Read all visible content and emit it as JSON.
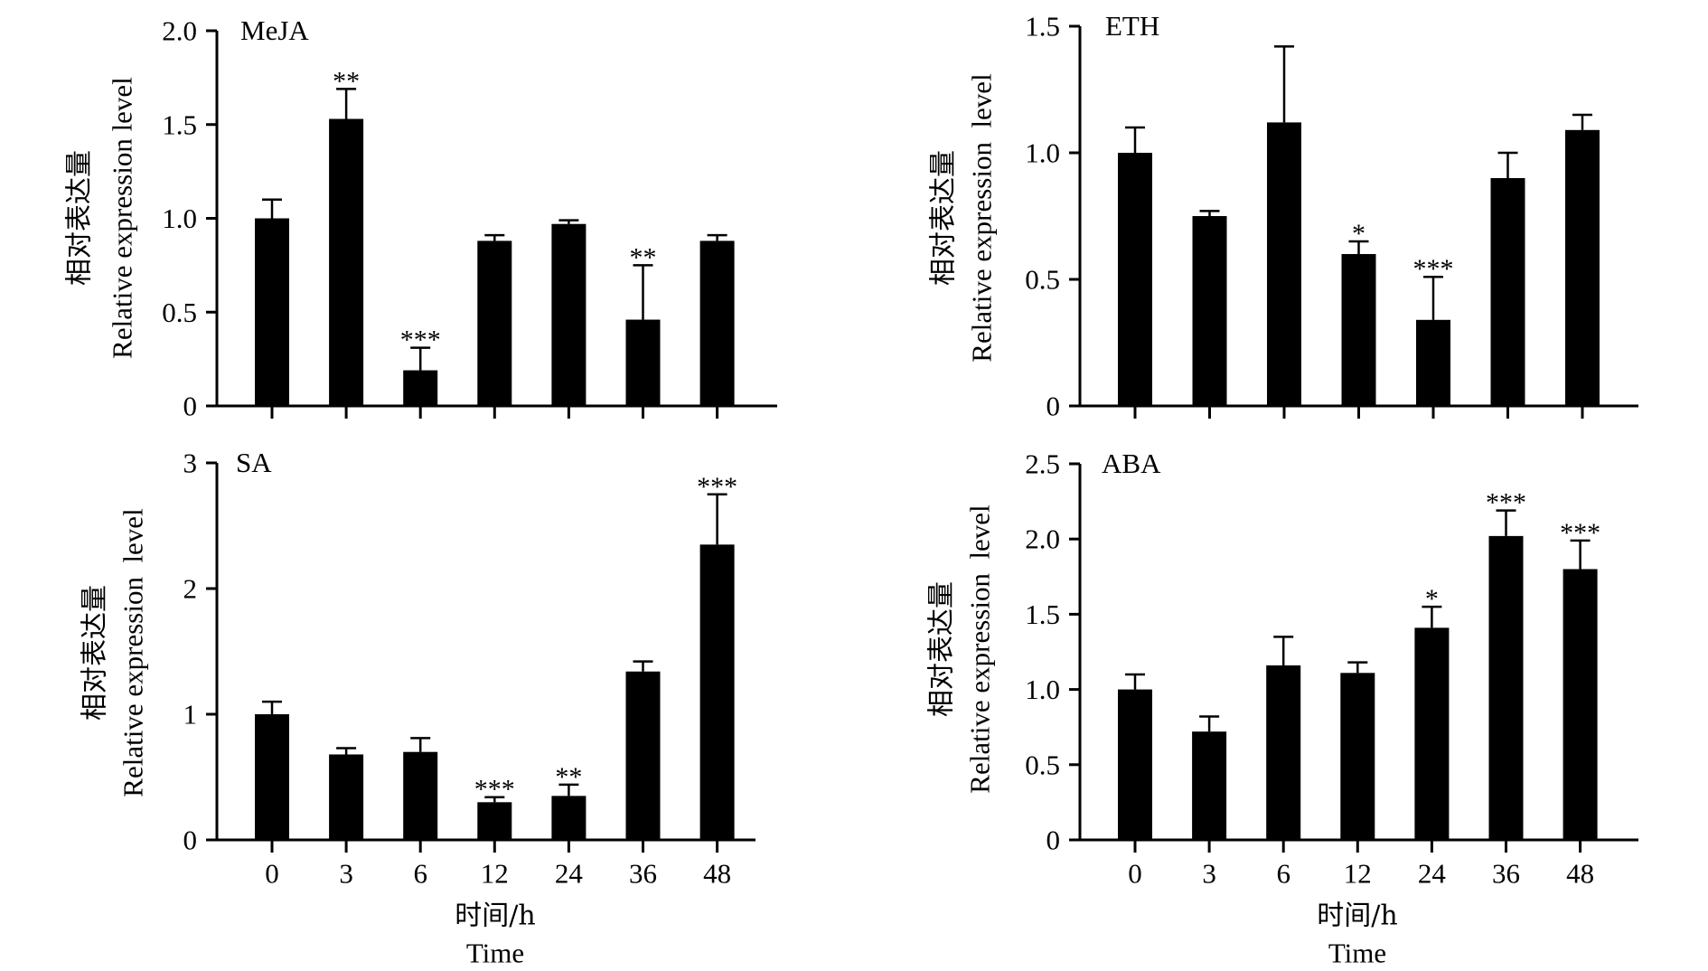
{
  "figure": {
    "background": "#ffffff"
  },
  "chart_data": [
    {
      "type": "bar",
      "title": "MeJA",
      "x": [
        0,
        3,
        6,
        12,
        24,
        36,
        48
      ],
      "x_tick_labels_shown": false,
      "values": [
        1.0,
        1.53,
        0.19,
        0.88,
        0.97,
        0.46,
        0.88
      ],
      "errors": [
        0.1,
        0.16,
        0.12,
        0.03,
        0.02,
        0.29,
        0.03
      ],
      "significance": [
        "",
        "**",
        "***",
        "",
        "",
        "**",
        ""
      ],
      "ylabel": {
        "cn": "相对表达量",
        "en": "Relative expression level"
      },
      "ylim": [
        0,
        2.0
      ],
      "yticks": [
        "0",
        "0.5",
        "1.0",
        "1.5",
        "2.0"
      ],
      "grid": false,
      "bar_color": "#000000",
      "axis_color": "#000000"
    },
    {
      "type": "bar",
      "title": "ETH",
      "x": [
        0,
        3,
        6,
        12,
        24,
        36,
        48
      ],
      "x_tick_labels_shown": false,
      "values": [
        1.0,
        0.75,
        1.12,
        0.6,
        0.34,
        0.9,
        1.09
      ],
      "errors": [
        0.1,
        0.02,
        0.3,
        0.05,
        0.17,
        0.1,
        0.06
      ],
      "significance": [
        "",
        "",
        "",
        "*",
        "***",
        "",
        ""
      ],
      "ylabel": {
        "cn": "相对表达量",
        "en": "Relative expression  level"
      },
      "ylim": [
        0,
        1.5
      ],
      "yticks": [
        "0",
        "0.5",
        "1.0",
        "1.5"
      ],
      "grid": false,
      "bar_color": "#000000",
      "axis_color": "#000000"
    },
    {
      "type": "bar",
      "title": "SA",
      "x": [
        0,
        3,
        6,
        12,
        24,
        36,
        48
      ],
      "x_tick_labels_shown": true,
      "values": [
        1.0,
        0.68,
        0.7,
        0.3,
        0.35,
        1.34,
        2.35
      ],
      "errors": [
        0.1,
        0.05,
        0.11,
        0.04,
        0.09,
        0.08,
        0.4
      ],
      "significance": [
        "",
        "",
        "",
        "***",
        "**",
        "",
        "***"
      ],
      "ylabel": {
        "cn": "相对表达量",
        "en": "Relative expression  level"
      },
      "xlabel": {
        "cn": "时间/h",
        "en": "Time"
      },
      "ylim": [
        0,
        3
      ],
      "yticks": [
        "0",
        "1",
        "2",
        "3"
      ],
      "grid": false,
      "bar_color": "#000000",
      "axis_color": "#000000"
    },
    {
      "type": "bar",
      "title": "ABA",
      "x": [
        0,
        3,
        6,
        12,
        24,
        36,
        48
      ],
      "x_tick_labels_shown": true,
      "values": [
        1.0,
        0.72,
        1.16,
        1.11,
        1.41,
        2.02,
        1.8
      ],
      "errors": [
        0.1,
        0.1,
        0.19,
        0.07,
        0.14,
        0.17,
        0.19
      ],
      "significance": [
        "",
        "",
        "",
        "",
        "*",
        "***",
        "***"
      ],
      "ylabel": {
        "cn": "相对表达量",
        "en": "Relative expression  level"
      },
      "xlabel": {
        "cn": "时间/h",
        "en": "Time"
      },
      "ylim": [
        0,
        2.5
      ],
      "yticks": [
        "0",
        "0.5",
        "1.0",
        "1.5",
        "2.0",
        "2.5"
      ],
      "grid": false,
      "bar_color": "#000000",
      "axis_color": "#000000"
    }
  ]
}
